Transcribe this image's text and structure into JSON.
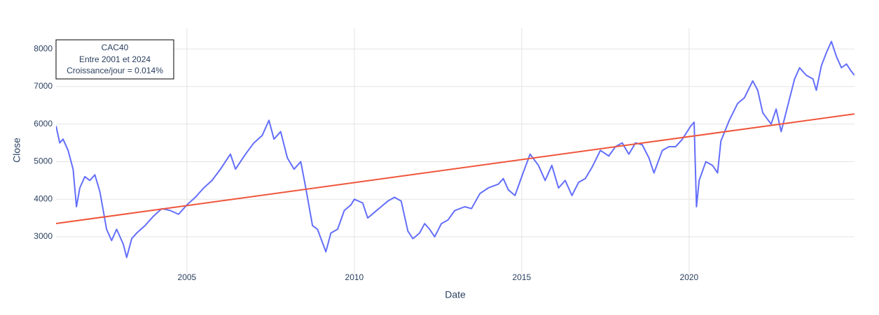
{
  "chart_data": {
    "type": "line",
    "xlabel": "Date",
    "ylabel": "Close",
    "annotation": [
      "CAC40",
      "Entre 2001 et 2024",
      "Croissance/jour = 0.014%"
    ],
    "xlim": [
      2001.09,
      2024.94
    ],
    "xticks": [
      2005,
      2010,
      2015,
      2020
    ],
    "ylim": [
      2015,
      8560
    ],
    "yticks": [
      3000,
      4000,
      5000,
      6000,
      7000,
      8000
    ],
    "grid": true,
    "series": [
      {
        "color": "#636efa",
        "x": [
          2001.09,
          2001.2,
          2001.3,
          2001.45,
          2001.6,
          2001.7,
          2001.8,
          2001.95,
          2002.1,
          2002.25,
          2002.4,
          2002.5,
          2002.6,
          2002.75,
          2002.9,
          2003.1,
          2003.2,
          2003.35,
          2003.5,
          2003.75,
          2004.0,
          2004.25,
          2004.5,
          2004.75,
          2005.0,
          2005.25,
          2005.5,
          2005.75,
          2006.0,
          2006.3,
          2006.45,
          2006.75,
          2007.0,
          2007.25,
          2007.45,
          2007.6,
          2007.8,
          2008.0,
          2008.2,
          2008.4,
          2008.55,
          2008.75,
          2008.9,
          2009.15,
          2009.3,
          2009.5,
          2009.7,
          2009.9,
          2010.0,
          2010.25,
          2010.4,
          2010.6,
          2010.8,
          2011.0,
          2011.2,
          2011.4,
          2011.6,
          2011.75,
          2011.95,
          2012.1,
          2012.25,
          2012.4,
          2012.6,
          2012.8,
          2013.0,
          2013.3,
          2013.5,
          2013.75,
          2014.0,
          2014.3,
          2014.45,
          2014.6,
          2014.8,
          2015.0,
          2015.25,
          2015.5,
          2015.7,
          2015.9,
          2016.1,
          2016.3,
          2016.5,
          2016.7,
          2016.9,
          2017.1,
          2017.35,
          2017.6,
          2017.8,
          2018.0,
          2018.2,
          2018.4,
          2018.6,
          2018.8,
          2018.95,
          2019.2,
          2019.4,
          2019.6,
          2019.8,
          2020.05,
          2020.15,
          2020.22,
          2020.3,
          2020.5,
          2020.7,
          2020.85,
          2020.95,
          2021.2,
          2021.45,
          2021.65,
          2021.9,
          2022.05,
          2022.2,
          2022.45,
          2022.6,
          2022.75,
          2022.95,
          2023.15,
          2023.3,
          2023.5,
          2023.7,
          2023.8,
          2023.95,
          2024.1,
          2024.25,
          2024.4,
          2024.55,
          2024.7,
          2024.85,
          2024.94
        ],
        "values": [
          5950,
          5500,
          5600,
          5300,
          4800,
          3800,
          4300,
          4600,
          4500,
          4650,
          4200,
          3700,
          3200,
          2900,
          3200,
          2800,
          2450,
          2950,
          3100,
          3300,
          3550,
          3750,
          3700,
          3600,
          3850,
          4050,
          4300,
          4500,
          4800,
          5200,
          4800,
          5200,
          5500,
          5700,
          6100,
          5600,
          5800,
          5100,
          4800,
          5000,
          4300,
          3300,
          3200,
          2600,
          3100,
          3200,
          3700,
          3850,
          4000,
          3900,
          3500,
          3650,
          3800,
          3950,
          4050,
          3950,
          3150,
          2950,
          3100,
          3350,
          3200,
          3000,
          3350,
          3450,
          3700,
          3800,
          3750,
          4150,
          4300,
          4400,
          4550,
          4250,
          4100,
          4600,
          5200,
          4900,
          4500,
          4900,
          4300,
          4500,
          4100,
          4450,
          4550,
          4850,
          5300,
          5150,
          5400,
          5500,
          5200,
          5500,
          5450,
          5100,
          4700,
          5300,
          5400,
          5400,
          5600,
          5950,
          6050,
          3800,
          4500,
          5000,
          4900,
          4700,
          5550,
          6100,
          6550,
          6700,
          7150,
          6900,
          6300,
          6000,
          6400,
          5800,
          6500,
          7200,
          7500,
          7300,
          7200,
          6900,
          7550,
          7900,
          8200,
          7800,
          7500,
          7600,
          7400,
          7300
        ]
      },
      {
        "color": "#ef553b",
        "x": [
          2001.09,
          2024.94
        ],
        "values": [
          3353,
          6271
        ]
      }
    ]
  }
}
